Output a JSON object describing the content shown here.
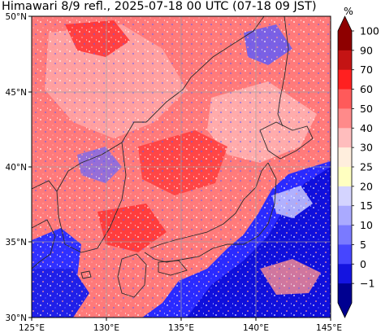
{
  "title": "Himawari 8/9 refl., 2025-07-18 00 UTC (07-18 09 JST)",
  "map": {
    "lon_range": [
      125,
      145
    ],
    "lat_range": [
      30,
      50
    ],
    "lon_ticks": [
      "125°E",
      "130°E",
      "135°E",
      "140°E",
      "145°E"
    ],
    "lat_ticks": [
      "30°N",
      "35°N",
      "40°N",
      "45°N",
      "50°N"
    ],
    "gridlines": true,
    "field": "reflectivity"
  },
  "colorbar": {
    "unit": "%",
    "labels": [
      "100",
      "90",
      "70",
      "60",
      "50",
      "40",
      "30",
      "25",
      "20",
      "15",
      "10",
      "5",
      "0",
      "−1"
    ],
    "colors": [
      "#8e0000",
      "#c41414",
      "#ff2020",
      "#ff5a5a",
      "#ff8a8a",
      "#ffbdbd",
      "#ffeedd",
      "#ffffc0",
      "#d4d4ff",
      "#aaaaff",
      "#7a7aff",
      "#4646ff",
      "#1414e0",
      "#000090"
    ],
    "extend": "both"
  }
}
